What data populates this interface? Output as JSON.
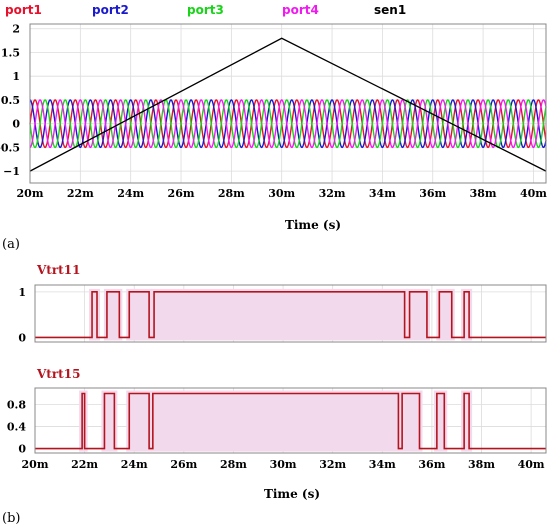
{
  "colors": {
    "port1": "#e8102a",
    "port2": "#1a1acc",
    "port3": "#19d419",
    "port4": "#f01af0",
    "sen1": "#000000",
    "pulse": "#b4141e",
    "pulse_fill": "#f3d9ec"
  },
  "labels": {
    "panel_a": "(a)",
    "panel_b": "(b)"
  },
  "chart_data": [
    {
      "type": "line",
      "series": [
        {
          "name": "port1",
          "kind": "sine",
          "amplitude": 0.5,
          "period_ms": 0.8,
          "phase_deg": 0
        },
        {
          "name": "port2",
          "kind": "sine",
          "amplitude": 0.5,
          "period_ms": 0.8,
          "phase_deg": 90
        },
        {
          "name": "port3",
          "kind": "sine",
          "amplitude": 0.5,
          "period_ms": 0.8,
          "phase_deg": 180
        },
        {
          "name": "port4",
          "kind": "sine",
          "amplitude": 0.5,
          "period_ms": 0.8,
          "phase_deg": 270
        },
        {
          "name": "sen1",
          "kind": "triangle",
          "x": [
            20,
            30,
            40.5
          ],
          "y": [
            -1,
            1.8,
            -1
          ]
        }
      ],
      "xlim": [
        20,
        40.5
      ],
      "ylim": [
        -1.25,
        2.1
      ],
      "xticks": [
        20,
        22,
        24,
        26,
        28,
        30,
        32,
        34,
        36,
        38,
        40
      ],
      "xtick_labels": [
        "20m",
        "22m",
        "24m",
        "26m",
        "28m",
        "30m",
        "32m",
        "34m",
        "36m",
        "38m",
        "40m"
      ],
      "yticks": [
        2,
        1.5,
        1,
        0.5,
        0,
        -0.5,
        -1
      ],
      "ytick_labels": [
        "2",
        "1.5",
        "1",
        "0.5",
        "0",
        "-0.5",
        "−1"
      ],
      "xlabel": "Time (s)",
      "grid": true
    },
    {
      "type": "line",
      "title": "Vtrt11",
      "series": [
        {
          "name": "Vtrt11",
          "x": [
            20,
            22.3,
            22.3,
            22.5,
            22.5,
            22.9,
            22.9,
            23.4,
            23.4,
            23.8,
            23.8,
            24.6,
            24.6,
            24.8,
            24.8,
            34.9,
            34.9,
            35.1,
            35.1,
            35.8,
            35.8,
            36.3,
            36.3,
            36.8,
            36.8,
            37.3,
            37.3,
            37.5,
            37.5,
            40.6
          ],
          "y": [
            0,
            0,
            1,
            1,
            0,
            0,
            1,
            1,
            0,
            0,
            1,
            1,
            0,
            0,
            1,
            1,
            0,
            0,
            1,
            1,
            0,
            0,
            1,
            1,
            0,
            0,
            1,
            1,
            0,
            0
          ]
        }
      ],
      "xlim": [
        20,
        40.6
      ],
      "ylim": [
        -0.1,
        1.15
      ],
      "yticks": [
        0,
        1
      ],
      "ytick_labels": [
        "0",
        "1"
      ],
      "grid": true
    },
    {
      "type": "line",
      "title": "Vtrt15",
      "series": [
        {
          "name": "Vtrt15",
          "x": [
            20,
            21.9,
            21.9,
            22.0,
            22.0,
            22.8,
            22.8,
            23.2,
            23.2,
            23.8,
            23.8,
            24.6,
            24.6,
            24.75,
            24.75,
            34.65,
            34.65,
            34.8,
            34.8,
            35.5,
            35.5,
            36.2,
            36.2,
            36.5,
            36.5,
            37.3,
            37.3,
            37.5,
            37.5,
            40.6
          ],
          "y": [
            0,
            0,
            1,
            1,
            0,
            0,
            1,
            1,
            0,
            0,
            1,
            1,
            0,
            0,
            1,
            1,
            0,
            0,
            1,
            1,
            0,
            0,
            1,
            1,
            0,
            0,
            1,
            1,
            0,
            0
          ]
        }
      ],
      "xlim": [
        20,
        40.6
      ],
      "ylim": [
        -0.08,
        1.1
      ],
      "xticks": [
        20,
        22,
        24,
        26,
        28,
        30,
        32,
        34,
        36,
        38,
        40
      ],
      "xtick_labels": [
        "20m",
        "22m",
        "24m",
        "26m",
        "28m",
        "30m",
        "32m",
        "34m",
        "36m",
        "38m",
        "40m"
      ],
      "yticks": [
        0,
        0.4,
        0.8
      ],
      "ytick_labels": [
        "0",
        "0.4",
        "0.8"
      ],
      "xlabel": "Time (s)",
      "grid": true
    }
  ]
}
